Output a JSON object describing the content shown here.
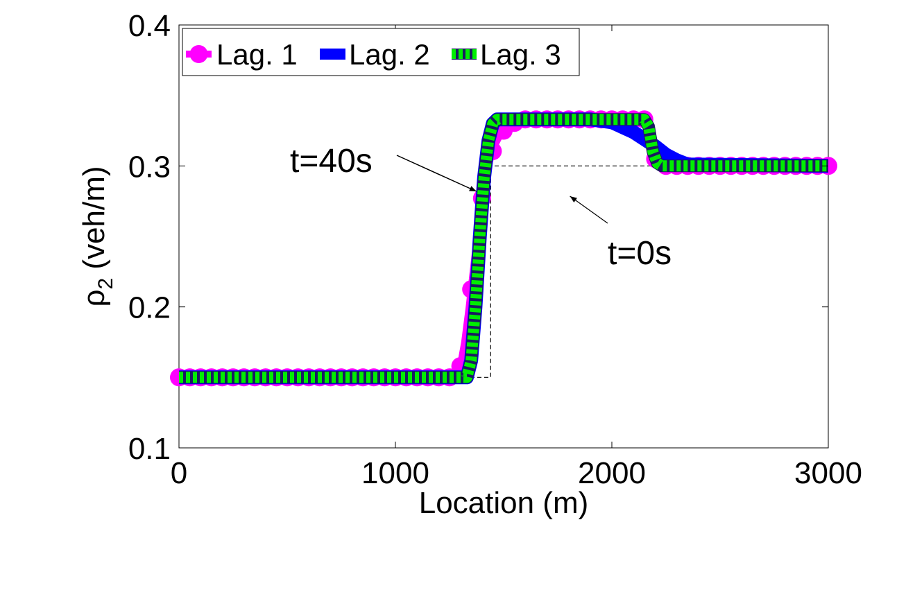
{
  "chart_data": {
    "type": "line",
    "xlabel": "Location (m)",
    "ylabel_main": "ρ",
    "ylabel_sub": "2",
    "ylabel_unit": " (veh/m)",
    "xlim": [
      0,
      3000
    ],
    "ylim": [
      0.1,
      0.4
    ],
    "xticks": [
      0,
      1000,
      2000,
      3000
    ],
    "xtick_labels": [
      "0",
      "1000",
      "2000",
      "3000"
    ],
    "yticks": [
      0.1,
      0.2,
      0.3,
      0.4
    ],
    "ytick_labels": [
      "0.1",
      "0.2",
      "0.3",
      "0.4"
    ],
    "grid": false,
    "legend_position": "top-left",
    "annotations": [
      {
        "text": "t=40s",
        "x_text": 540,
        "y_text": 0.305,
        "x_arrow": 1400,
        "y_arrow": 0.28
      },
      {
        "text": "t=0s",
        "x_text": 1970,
        "y_text": 0.24,
        "x_arrow": 1800,
        "y_arrow": 0.28
      }
    ],
    "initial": {
      "x": [
        0,
        1440,
        1440,
        2200,
        2200,
        3000
      ],
      "y": [
        0.15,
        0.15,
        0.3,
        0.3,
        0.3,
        0.3
      ]
    },
    "series": [
      {
        "name": "Lag. 1",
        "color": "#ff00ff",
        "style": "solid-circles",
        "x": [
          0,
          1280,
          1300,
          1320,
          1340,
          1360,
          1380,
          1400,
          1420,
          1440,
          1460,
          1480,
          1500,
          1520,
          1540,
          1560,
          1580,
          1600,
          1650,
          1700,
          2000,
          2150,
          2170,
          2190,
          2200,
          2220,
          3000
        ],
        "y": [
          0.15,
          0.15,
          0.158,
          0.175,
          0.199,
          0.226,
          0.253,
          0.277,
          0.294,
          0.306,
          0.315,
          0.321,
          0.325,
          0.328,
          0.33,
          0.331,
          0.332,
          0.333,
          0.333,
          0.333,
          0.333,
          0.333,
          0.332,
          0.32,
          0.305,
          0.3,
          0.3
        ]
      },
      {
        "name": "Lag. 2",
        "color": "#0000ff",
        "style": "solid-band",
        "x": [
          0,
          1330,
          1350,
          1370,
          1390,
          1410,
          1430,
          1450,
          1470,
          1500,
          1900,
          2000,
          2100,
          2200,
          2250,
          2300,
          2350,
          3000
        ],
        "y": [
          0.15,
          0.15,
          0.162,
          0.2,
          0.25,
          0.292,
          0.318,
          0.33,
          0.333,
          0.333,
          0.333,
          0.331,
          0.324,
          0.314,
          0.308,
          0.304,
          0.301,
          0.3
        ]
      },
      {
        "name": "Lag. 3",
        "color": "#00ee00",
        "style": "dashed",
        "x": [
          0,
          1330,
          1350,
          1370,
          1390,
          1410,
          1430,
          1450,
          1470,
          1500,
          2150,
          2170,
          2190,
          2210,
          2230,
          3000
        ],
        "y": [
          0.15,
          0.15,
          0.162,
          0.2,
          0.25,
          0.292,
          0.318,
          0.33,
          0.333,
          0.333,
          0.333,
          0.328,
          0.31,
          0.302,
          0.3,
          0.3
        ]
      }
    ]
  }
}
